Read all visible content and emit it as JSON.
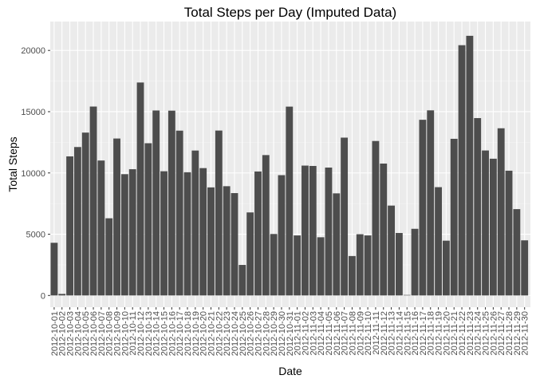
{
  "chart_data": {
    "type": "bar",
    "title": "Total Steps per Day (Imputed Data)",
    "xlabel": "Date",
    "ylabel": "Total Steps",
    "ylim": [
      0,
      22300
    ],
    "yticks": [
      0,
      5000,
      10000,
      15000,
      20000
    ],
    "grid": true,
    "legend": "none",
    "colors": {
      "panel": "#ebebeb",
      "grid_major": "#ffffff",
      "bar": "#4d4d4d",
      "tick_text": "#4d4d4d"
    },
    "categories": [
      "2012-10-01",
      "2012-10-02",
      "2012-10-03",
      "2012-10-04",
      "2012-10-05",
      "2012-10-06",
      "2012-10-07",
      "2012-10-08",
      "2012-10-09",
      "2012-10-10",
      "2012-10-11",
      "2012-10-12",
      "2012-10-13",
      "2012-10-14",
      "2012-10-15",
      "2012-10-16",
      "2012-10-17",
      "2012-10-18",
      "2012-10-19",
      "2012-10-20",
      "2012-10-21",
      "2012-10-22",
      "2012-10-23",
      "2012-10-24",
      "2012-10-25",
      "2012-10-26",
      "2012-10-27",
      "2012-10-28",
      "2012-10-29",
      "2012-10-30",
      "2012-10-31",
      "2012-11-01",
      "2012-11-02",
      "2012-11-03",
      "2012-11-04",
      "2012-11-05",
      "2012-11-06",
      "2012-11-07",
      "2012-11-08",
      "2012-11-09",
      "2012-11-10",
      "2012-11-11",
      "2012-11-12",
      "2012-11-13",
      "2012-11-14",
      "2012-11-15",
      "2012-11-16",
      "2012-11-17",
      "2012-11-18",
      "2012-11-19",
      "2012-11-20",
      "2012-11-21",
      "2012-11-22",
      "2012-11-23",
      "2012-11-24",
      "2012-11-25",
      "2012-11-26",
      "2012-11-27",
      "2012-11-28",
      "2012-11-29",
      "2012-11-30"
    ],
    "values": [
      4300,
      126,
      11352,
      12116,
      13294,
      15420,
      11015,
      6300,
      12811,
      9900,
      10304,
      17382,
      12426,
      15098,
      10139,
      15084,
      13452,
      10056,
      11829,
      10395,
      8821,
      13460,
      8918,
      8355,
      2492,
      6778,
      10119,
      11458,
      5018,
      9819,
      15414,
      4900,
      10600,
      10571,
      4750,
      10439,
      8334,
      12883,
      3219,
      5000,
      4900,
      12608,
      10765,
      7336,
      5100,
      41,
      5441,
      14339,
      15110,
      8841,
      4472,
      12787,
      20427,
      21194,
      14478,
      11834,
      11162,
      13646,
      10183,
      7047,
      4500
    ]
  }
}
